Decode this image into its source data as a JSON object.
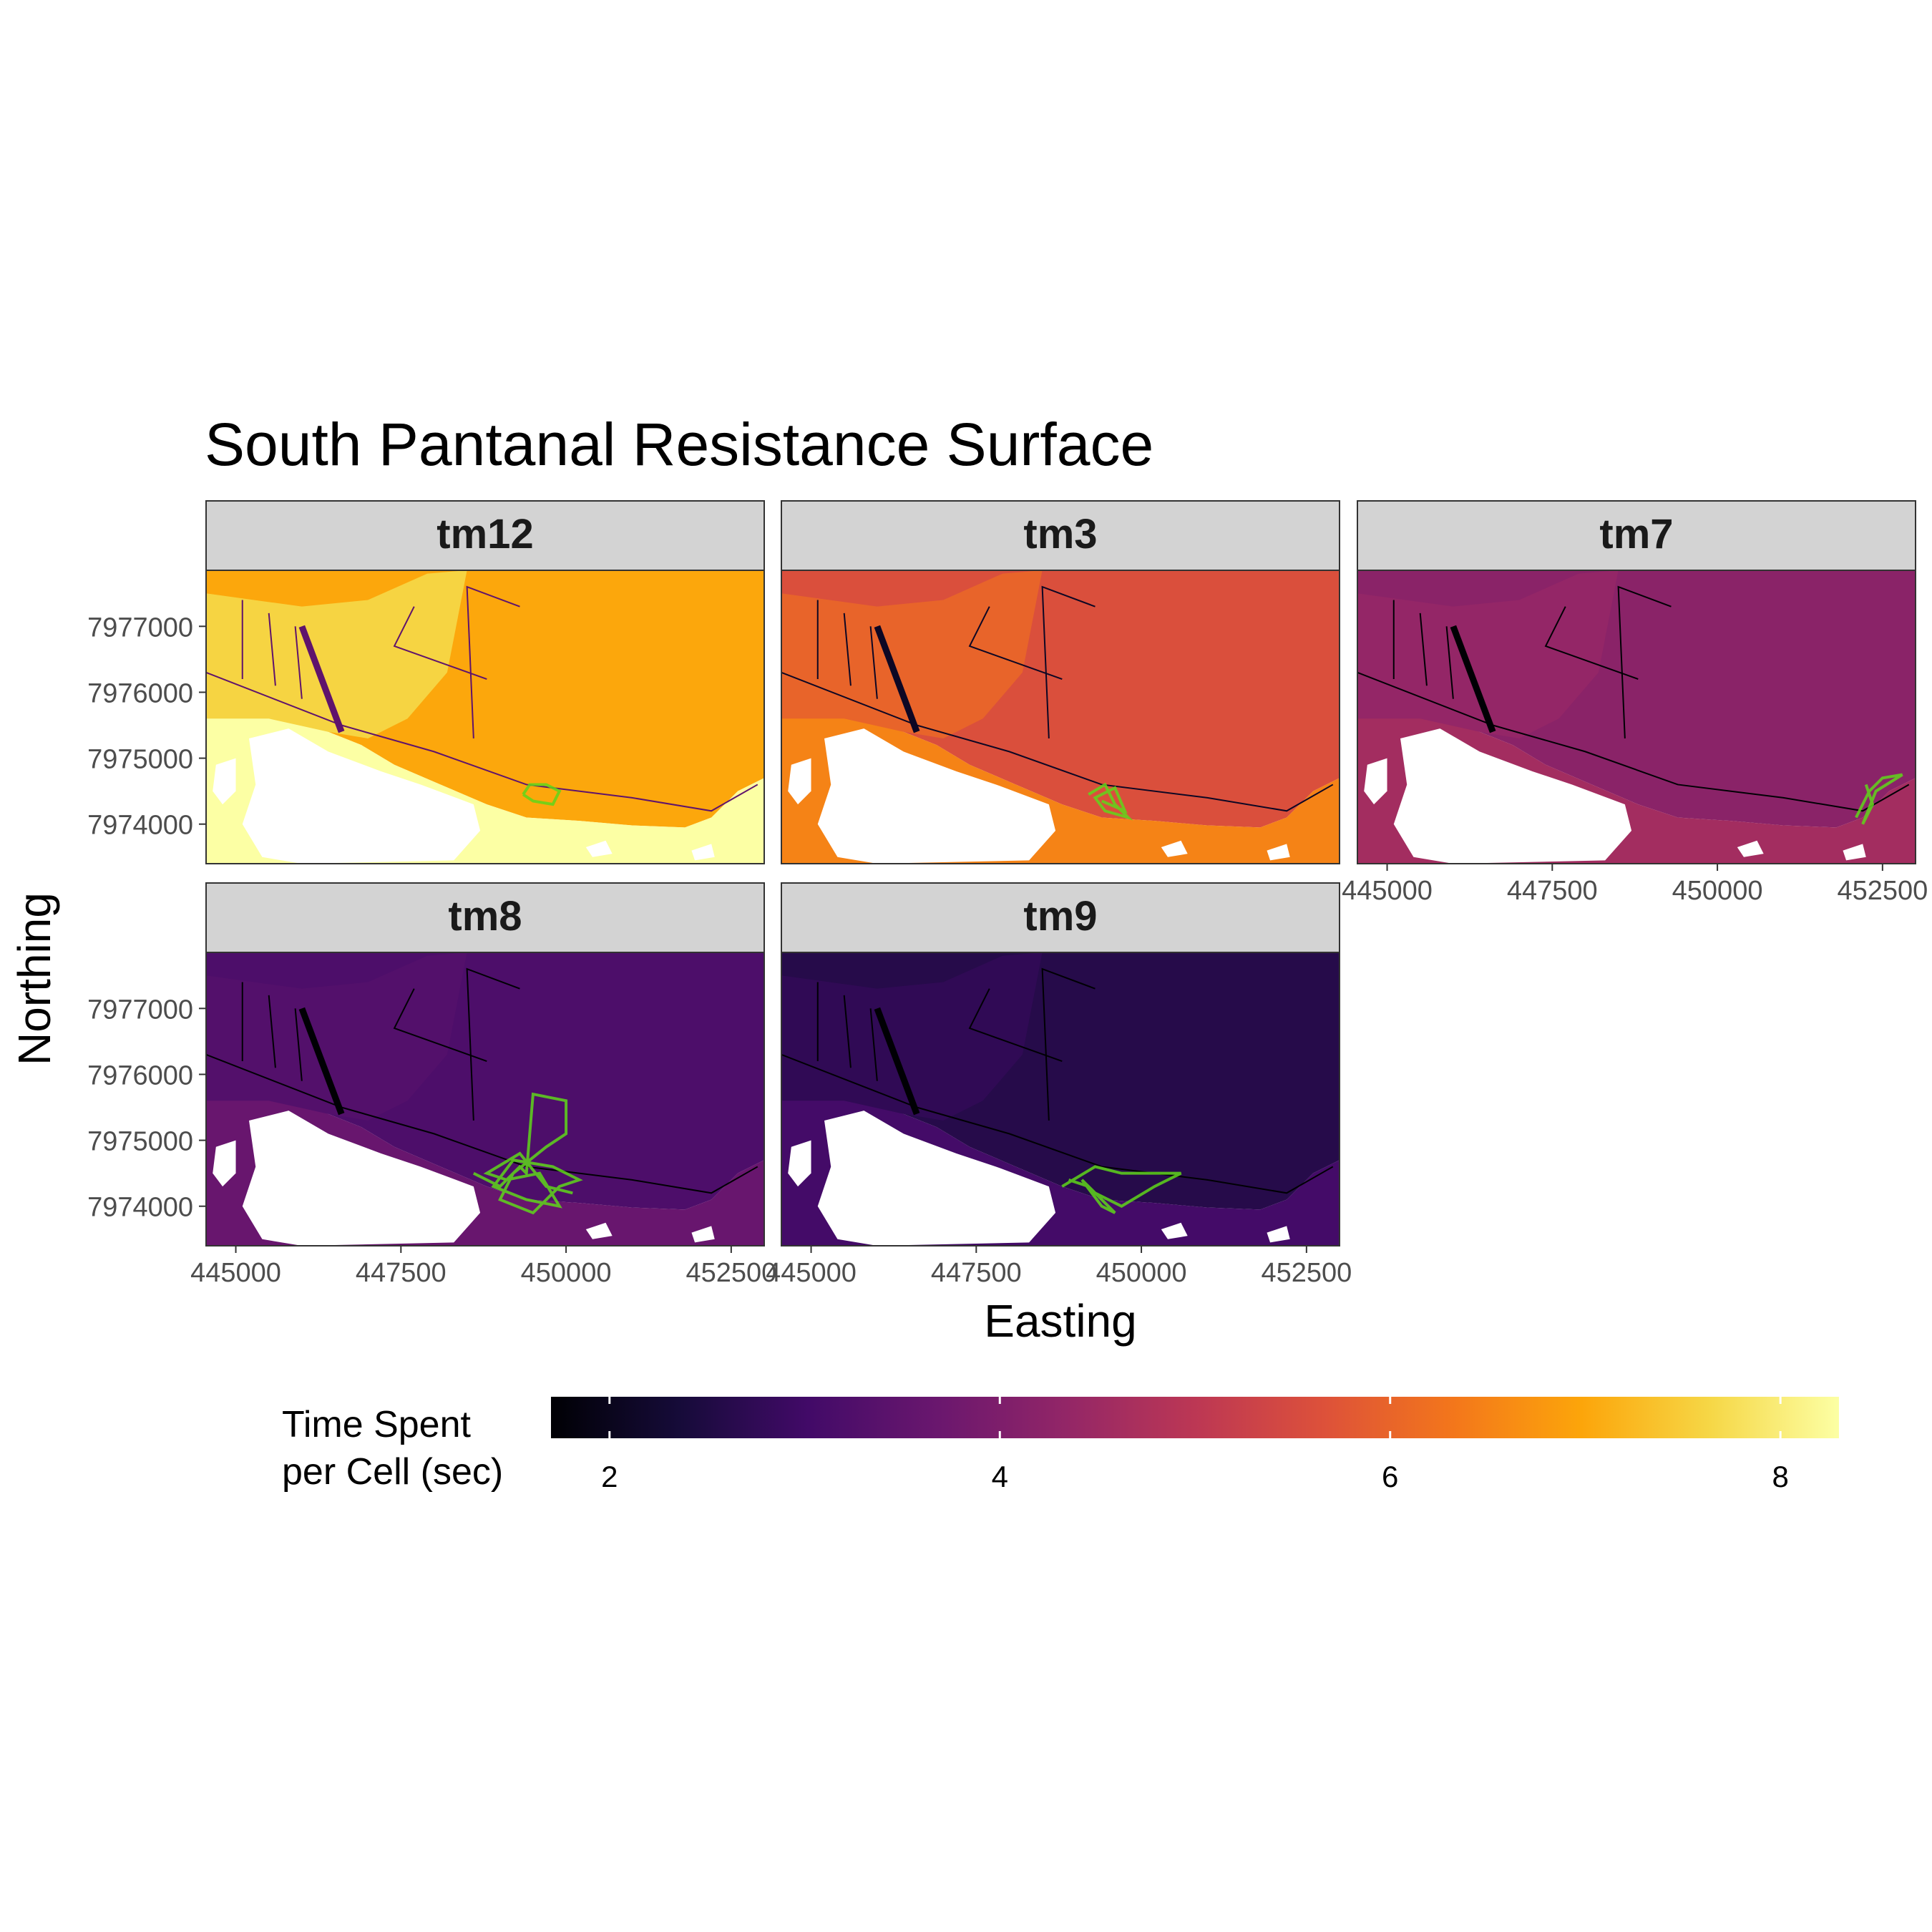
{
  "title": "South Pantanal Resistance Surface",
  "xlabel": "Easting",
  "ylabel": "Northing",
  "x_ticks": [
    {
      "value": 445000,
      "label": "445000"
    },
    {
      "value": 447500,
      "label": "447500"
    },
    {
      "value": 450000,
      "label": "450000"
    },
    {
      "value": 452500,
      "label": "452500"
    }
  ],
  "y_ticks": [
    {
      "value": 7974000,
      "label": "7974000"
    },
    {
      "value": 7975000,
      "label": "7975000"
    },
    {
      "value": 7976000,
      "label": "7976000"
    },
    {
      "value": 7977000,
      "label": "7977000"
    }
  ],
  "xlim": [
    444550,
    453000
  ],
  "ylim": [
    7973400,
    7977850
  ],
  "legend": {
    "title_line1": "Time Spent",
    "title_line2": "per Cell (sec)",
    "range": [
      1.7,
      8.3
    ],
    "ticks": [
      {
        "value": 2,
        "label": "2"
      },
      {
        "value": 4,
        "label": "4"
      },
      {
        "value": 6,
        "label": "6"
      },
      {
        "value": 8,
        "label": "8"
      }
    ],
    "palette": "inferno",
    "position": "bottom"
  },
  "track_color": "#5fd61a",
  "chart_data": {
    "type": "heatmap",
    "title": "South Pantanal Resistance Surface",
    "xlabel": "Easting",
    "ylabel": "Northing",
    "facets": [
      {
        "name": "tm12",
        "main": 7.0,
        "upland": 7.6,
        "floodplain": 8.3,
        "track": [
          [
            449350,
            7974450
          ],
          [
            449500,
            7974350
          ],
          [
            449800,
            7974300
          ],
          [
            449900,
            7974500
          ],
          [
            449700,
            7974600
          ],
          [
            449450,
            7974600
          ],
          [
            449350,
            7974450
          ]
        ]
      },
      {
        "name": "tm3",
        "main": 5.6,
        "upland": 6.0,
        "floodplain": 6.5,
        "track": [
          [
            449200,
            7974450
          ],
          [
            449450,
            7974600
          ],
          [
            449600,
            7974300
          ],
          [
            449800,
            7974100
          ],
          [
            449450,
            7974200
          ],
          [
            449300,
            7974400
          ],
          [
            449600,
            7974550
          ],
          [
            449750,
            7974200
          ],
          [
            449400,
            7974350
          ]
        ]
      },
      {
        "name": "tm7",
        "main": 4.2,
        "upland": 4.35,
        "floodplain": 4.6,
        "track": [
          [
            452100,
            7974100
          ],
          [
            452300,
            7974500
          ],
          [
            452500,
            7974700
          ],
          [
            452800,
            7974750
          ],
          [
            452400,
            7974500
          ],
          [
            452200,
            7974000
          ],
          [
            452350,
            7974300
          ],
          [
            452250,
            7974600
          ]
        ]
      },
      {
        "name": "tm8",
        "main": 3.2,
        "upland": 3.3,
        "floodplain": 3.65,
        "track": [
          [
            448600,
            7974500
          ],
          [
            449000,
            7974300
          ],
          [
            449300,
            7974600
          ],
          [
            449400,
            7974500
          ],
          [
            449500,
            7975700
          ],
          [
            450000,
            7975600
          ],
          [
            450000,
            7975100
          ],
          [
            449700,
            7974900
          ],
          [
            449200,
            7974500
          ],
          [
            449000,
            7974100
          ],
          [
            449500,
            7973900
          ],
          [
            449900,
            7974300
          ],
          [
            450200,
            7974400
          ],
          [
            449800,
            7974600
          ],
          [
            449200,
            7974700
          ],
          [
            448900,
            7974300
          ],
          [
            449400,
            7974100
          ],
          [
            449900,
            7974000
          ],
          [
            449600,
            7974500
          ],
          [
            449100,
            7974400
          ],
          [
            448800,
            7974500
          ],
          [
            449300,
            7974800
          ],
          [
            449700,
            7974300
          ],
          [
            450100,
            7974200
          ]
        ]
      },
      {
        "name": "tm9",
        "main": 2.6,
        "upland": 2.75,
        "floodplain": 3.05,
        "track": [
          [
            448800,
            7974300
          ],
          [
            449300,
            7974600
          ],
          [
            449700,
            7974500
          ],
          [
            450200,
            7974500
          ],
          [
            450600,
            7974500
          ],
          [
            450200,
            7974300
          ],
          [
            449700,
            7974000
          ],
          [
            449300,
            7974200
          ],
          [
            449100,
            7974400
          ],
          [
            449400,
            7974000
          ],
          [
            449600,
            7973900
          ],
          [
            449200,
            7974300
          ],
          [
            448900,
            7974400
          ]
        ]
      }
    ]
  }
}
